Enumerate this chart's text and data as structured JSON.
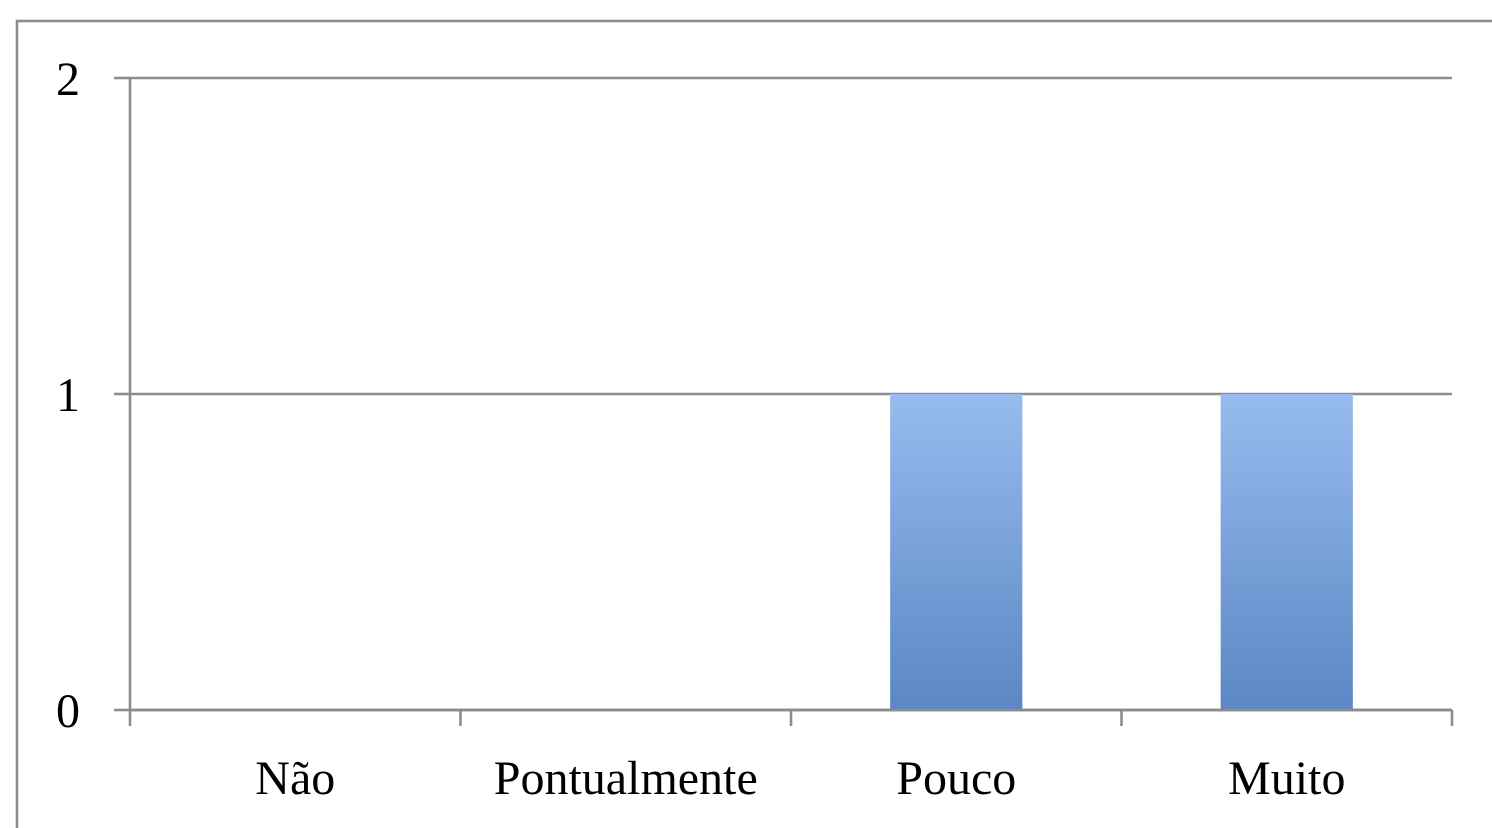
{
  "chart_data": {
    "type": "bar",
    "categories": [
      "Não",
      "Pontualmente",
      "Pouco",
      "Muito"
    ],
    "values": [
      0,
      0,
      1,
      1
    ],
    "color": "#6b9ee6",
    "ylim": [
      0,
      2
    ],
    "yticks": [
      0,
      1,
      2
    ],
    "grid": "y"
  }
}
